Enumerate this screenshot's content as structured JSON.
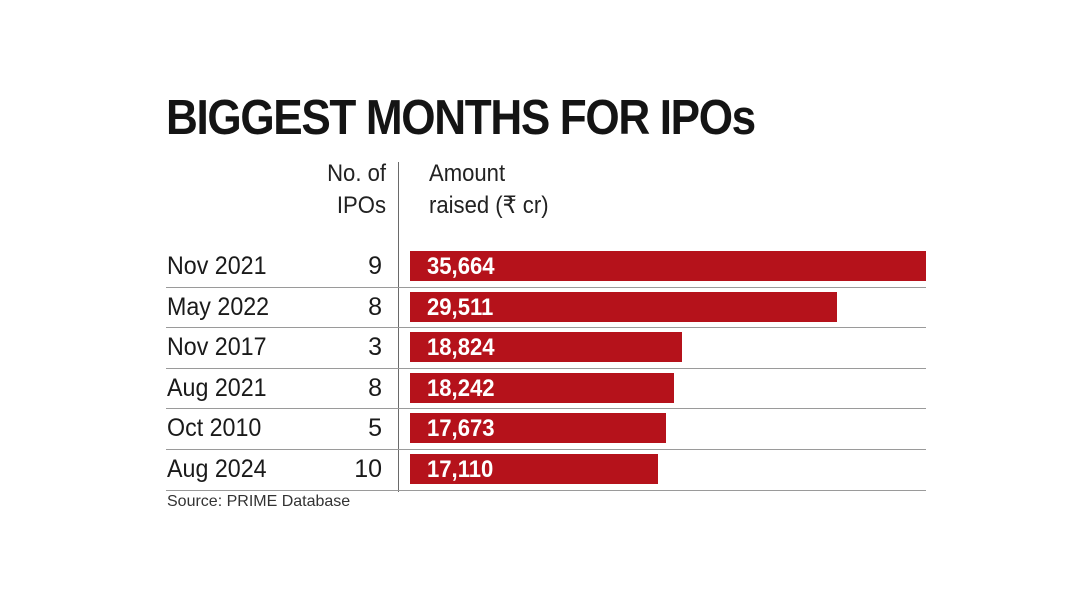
{
  "chart_data": {
    "type": "bar",
    "title": "BIGGEST MONTHS FOR IPOs",
    "column_headers": {
      "count_line1": "No. of",
      "count_line2": "IPOs",
      "amount_line1": "Amount",
      "amount_line2": "raised (₹ cr)"
    },
    "categories": [
      "Nov 2021",
      "May 2022",
      "Nov 2017",
      "Aug 2021",
      "Oct 2010",
      "Aug 2024"
    ],
    "ipo_counts": [
      "9",
      "8",
      "3",
      "8",
      "5",
      "10"
    ],
    "values": [
      35664,
      29511,
      18824,
      18242,
      17673,
      17110
    ],
    "value_labels": [
      "35,664",
      "29,511",
      "18,824",
      "18,242",
      "17,673",
      "17,110"
    ],
    "xlabel": "Amount raised (₹ cr)",
    "ylabel": "",
    "xlim": [
      0,
      35664
    ],
    "orientation": "horizontal",
    "bar_color": "#b5121b",
    "source": "Source: PRIME Database"
  }
}
